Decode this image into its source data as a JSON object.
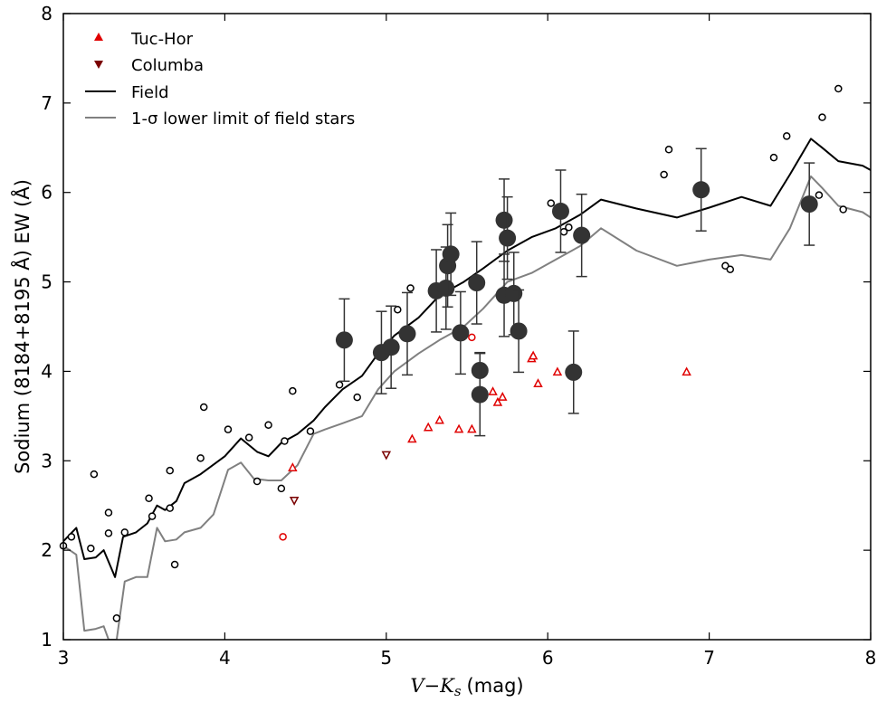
{
  "chart_data": {
    "type": "scatter",
    "title": "",
    "xlabel": "V−K",
    "xlabel_sub": "s",
    "xlabel_unit": "(mag)",
    "ylabel": "Sodium (8184+8195 Å) EW (Å)",
    "xlim": [
      3,
      8
    ],
    "ylim": [
      1,
      8
    ],
    "xticks": [
      "3",
      "4",
      "5",
      "6",
      "7",
      "8"
    ],
    "yticks": [
      "1",
      "2",
      "3",
      "4",
      "5",
      "6",
      "7",
      "8"
    ],
    "grid": false,
    "legend_position": "top-left",
    "legend": [
      {
        "label": "Tuc-Hor",
        "marker": "triangle-up",
        "color": "#e00000"
      },
      {
        "label": "Columba",
        "marker": "triangle-down",
        "color": "#7a0000"
      },
      {
        "label": "Field",
        "marker": "line",
        "color": "#000000"
      },
      {
        "label": "1-σ lower limit of field stars",
        "marker": "line",
        "color": "#808080"
      }
    ],
    "colors": {
      "tuc_hor": "#e00000",
      "columba": "#7a0000",
      "field": "#000000",
      "lower_limit": "#808080",
      "measured": "#333333"
    },
    "series": [
      {
        "name": "Field",
        "kind": "line",
        "points": [
          [
            3.0,
            2.1
          ],
          [
            3.08,
            2.25
          ],
          [
            3.13,
            1.9
          ],
          [
            3.2,
            1.92
          ],
          [
            3.25,
            2.0
          ],
          [
            3.32,
            1.7
          ],
          [
            3.37,
            2.15
          ],
          [
            3.45,
            2.2
          ],
          [
            3.52,
            2.3
          ],
          [
            3.58,
            2.5
          ],
          [
            3.63,
            2.45
          ],
          [
            3.7,
            2.55
          ],
          [
            3.75,
            2.75
          ],
          [
            3.85,
            2.85
          ],
          [
            4.0,
            3.05
          ],
          [
            4.1,
            3.25
          ],
          [
            4.2,
            3.1
          ],
          [
            4.27,
            3.05
          ],
          [
            4.35,
            3.2
          ],
          [
            4.45,
            3.3
          ],
          [
            4.55,
            3.45
          ],
          [
            4.62,
            3.6
          ],
          [
            4.73,
            3.8
          ],
          [
            4.85,
            3.95
          ],
          [
            4.95,
            4.2
          ],
          [
            5.05,
            4.4
          ],
          [
            5.2,
            4.6
          ],
          [
            5.33,
            4.85
          ],
          [
            5.48,
            5.0
          ],
          [
            5.6,
            5.15
          ],
          [
            5.75,
            5.35
          ],
          [
            5.9,
            5.5
          ],
          [
            6.05,
            5.6
          ],
          [
            6.2,
            5.75
          ],
          [
            6.33,
            5.92
          ],
          [
            6.55,
            5.82
          ],
          [
            6.8,
            5.72
          ],
          [
            7.0,
            5.83
          ],
          [
            7.2,
            5.95
          ],
          [
            7.38,
            5.85
          ],
          [
            7.5,
            6.2
          ],
          [
            7.63,
            6.6
          ],
          [
            7.7,
            6.5
          ],
          [
            7.8,
            6.35
          ],
          [
            7.95,
            6.3
          ],
          [
            8.0,
            6.25
          ]
        ]
      },
      {
        "name": "1-σ lower limit of field stars",
        "kind": "line",
        "points": [
          [
            3.0,
            2.05
          ],
          [
            3.08,
            1.95
          ],
          [
            3.13,
            1.1
          ],
          [
            3.2,
            1.12
          ],
          [
            3.25,
            1.15
          ],
          [
            3.28,
            1.0
          ],
          [
            3.33,
            1.0
          ],
          [
            3.38,
            1.65
          ],
          [
            3.45,
            1.7
          ],
          [
            3.52,
            1.7
          ],
          [
            3.58,
            2.25
          ],
          [
            3.63,
            2.1
          ],
          [
            3.7,
            2.12
          ],
          [
            3.75,
            2.2
          ],
          [
            3.85,
            2.25
          ],
          [
            3.93,
            2.4
          ],
          [
            4.02,
            2.9
          ],
          [
            4.1,
            2.98
          ],
          [
            4.18,
            2.8
          ],
          [
            4.27,
            2.78
          ],
          [
            4.35,
            2.78
          ],
          [
            4.45,
            2.95
          ],
          [
            4.55,
            3.3
          ],
          [
            4.62,
            3.35
          ],
          [
            4.73,
            3.42
          ],
          [
            4.85,
            3.5
          ],
          [
            4.95,
            3.8
          ],
          [
            5.05,
            4.0
          ],
          [
            5.2,
            4.2
          ],
          [
            5.33,
            4.35
          ],
          [
            5.48,
            4.5
          ],
          [
            5.6,
            4.7
          ],
          [
            5.75,
            5.0
          ],
          [
            5.9,
            5.1
          ],
          [
            6.05,
            5.25
          ],
          [
            6.2,
            5.4
          ],
          [
            6.33,
            5.6
          ],
          [
            6.55,
            5.35
          ],
          [
            6.8,
            5.18
          ],
          [
            7.0,
            5.25
          ],
          [
            7.2,
            5.3
          ],
          [
            7.38,
            5.25
          ],
          [
            7.5,
            5.6
          ],
          [
            7.63,
            6.18
          ],
          [
            7.7,
            6.05
          ],
          [
            7.8,
            5.85
          ],
          [
            7.95,
            5.78
          ],
          [
            8.0,
            5.72
          ]
        ]
      },
      {
        "name": "Field stars",
        "kind": "open-circle",
        "points": [
          [
            3.0,
            2.05
          ],
          [
            3.05,
            2.15
          ],
          [
            3.17,
            2.02
          ],
          [
            3.19,
            2.85
          ],
          [
            3.28,
            2.42
          ],
          [
            3.28,
            2.19
          ],
          [
            3.33,
            1.24
          ],
          [
            3.38,
            2.2
          ],
          [
            3.53,
            2.58
          ],
          [
            3.55,
            2.38
          ],
          [
            3.66,
            2.47
          ],
          [
            3.66,
            2.89
          ],
          [
            3.69,
            1.84
          ],
          [
            3.87,
            3.6
          ],
          [
            3.85,
            3.03
          ],
          [
            4.02,
            3.35
          ],
          [
            4.15,
            3.26
          ],
          [
            4.2,
            2.77
          ],
          [
            4.27,
            3.4
          ],
          [
            4.35,
            2.69
          ],
          [
            4.37,
            3.22
          ],
          [
            4.42,
            3.78
          ],
          [
            4.53,
            3.33
          ],
          [
            4.71,
            3.85
          ],
          [
            4.82,
            3.71
          ],
          [
            5.07,
            4.69
          ],
          [
            5.13,
            4.42
          ],
          [
            5.15,
            4.93
          ],
          [
            5.56,
            4.98
          ],
          [
            6.02,
            5.88
          ],
          [
            6.1,
            5.56
          ],
          [
            6.13,
            5.61
          ],
          [
            6.72,
            6.2
          ],
          [
            6.75,
            6.48
          ],
          [
            7.1,
            5.18
          ],
          [
            7.13,
            5.14
          ],
          [
            7.4,
            6.39
          ],
          [
            7.48,
            6.63
          ],
          [
            7.68,
            5.97
          ],
          [
            7.7,
            6.84
          ],
          [
            7.8,
            7.16
          ],
          [
            7.83,
            5.81
          ]
        ]
      },
      {
        "name": "Red open circles",
        "kind": "open-circle-red",
        "points": [
          [
            4.36,
            2.15
          ],
          [
            5.53,
            4.38
          ]
        ]
      },
      {
        "name": "Tuc-Hor",
        "kind": "triangle-up",
        "points": [
          [
            4.42,
            2.92
          ],
          [
            5.16,
            3.24
          ],
          [
            5.26,
            3.37
          ],
          [
            5.33,
            3.45
          ],
          [
            5.45,
            3.35
          ],
          [
            5.53,
            3.35
          ],
          [
            5.66,
            3.77
          ],
          [
            5.69,
            3.65
          ],
          [
            5.72,
            3.71
          ],
          [
            5.9,
            4.14
          ],
          [
            5.91,
            4.17
          ],
          [
            5.94,
            3.86
          ],
          [
            6.06,
            3.99
          ],
          [
            6.86,
            3.99
          ]
        ]
      },
      {
        "name": "Columba",
        "kind": "triangle-down",
        "points": [
          [
            4.43,
            2.56
          ],
          [
            5.0,
            3.07
          ]
        ]
      },
      {
        "name": "Measured",
        "kind": "filled-circle-errorbar",
        "points": [
          {
            "x": 4.74,
            "y": 4.35,
            "err": 0.46
          },
          {
            "x": 4.97,
            "y": 4.21,
            "err": 0.46
          },
          {
            "x": 5.03,
            "y": 4.27,
            "err": 0.46
          },
          {
            "x": 5.13,
            "y": 4.42,
            "err": 0.46
          },
          {
            "x": 5.31,
            "y": 4.9,
            "err": 0.46
          },
          {
            "x": 5.37,
            "y": 4.93,
            "err": 0.46
          },
          {
            "x": 5.38,
            "y": 5.18,
            "err": 0.46
          },
          {
            "x": 5.4,
            "y": 5.31,
            "err": 0.46
          },
          {
            "x": 5.46,
            "y": 4.43,
            "err": 0.46
          },
          {
            "x": 5.56,
            "y": 4.99,
            "err": 0.46
          },
          {
            "x": 5.58,
            "y": 4.01,
            "err": 0.2
          },
          {
            "x": 5.58,
            "y": 3.74,
            "err": 0.46
          },
          {
            "x": 5.73,
            "y": 5.69,
            "err": 0.46
          },
          {
            "x": 5.73,
            "y": 4.85,
            "err": 0.46
          },
          {
            "x": 5.75,
            "y": 5.49,
            "err": 0.46
          },
          {
            "x": 5.79,
            "y": 4.87,
            "err": 0.46
          },
          {
            "x": 5.82,
            "y": 4.45,
            "err": 0.46
          },
          {
            "x": 6.08,
            "y": 5.79,
            "err": 0.46
          },
          {
            "x": 6.16,
            "y": 3.99,
            "err": 0.46
          },
          {
            "x": 6.21,
            "y": 5.52,
            "err": 0.46
          },
          {
            "x": 6.95,
            "y": 6.03,
            "err": 0.46
          },
          {
            "x": 7.62,
            "y": 5.87,
            "err": 0.46
          }
        ]
      }
    ]
  }
}
